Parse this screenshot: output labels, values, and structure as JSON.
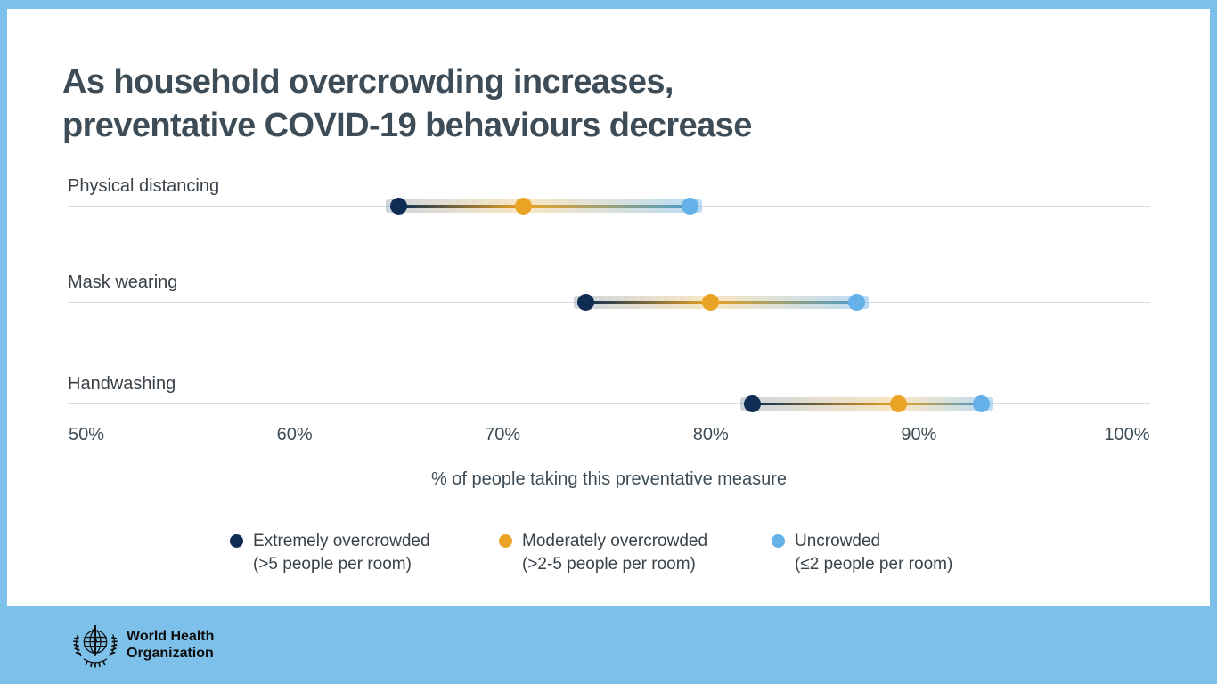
{
  "title": {
    "line1": "As household overcrowding increases,",
    "line2": "preventative COVID-19 behaviours decrease"
  },
  "chart_data": {
    "type": "dumbbell",
    "categories": [
      "Physical distancing",
      "Mask wearing",
      "Handwashing"
    ],
    "series": [
      {
        "name": "Extremely overcrowded (>5 people per room)",
        "color": "#0f2d52",
        "values": [
          65,
          74,
          82
        ]
      },
      {
        "name": "Moderately overcrowded (>2-5 people per room)",
        "color": "#e9a425",
        "values": [
          71,
          80,
          89
        ]
      },
      {
        "name": "Uncrowded (≤2 people per room)",
        "color": "#64b0e8",
        "values": [
          79,
          87,
          93
        ]
      }
    ],
    "xlim": [
      50,
      100
    ],
    "x_ticks": [
      "50%",
      "60%",
      "70%",
      "80%",
      "90%",
      "100%"
    ],
    "xlabel": "% of people taking this preventative measure",
    "grid": "one horizontal line per category row",
    "legend_position": "bottom"
  },
  "legend": {
    "items": [
      {
        "label": "Extremely overcrowded",
        "sublabel": "(>5 people per room)",
        "color": "#0f2d52"
      },
      {
        "label": "Moderately overcrowded",
        "sublabel": "(>2-5 people per room)",
        "color": "#e9a425"
      },
      {
        "label": "Uncrowded",
        "sublabel": "(≤2 people per room)",
        "color": "#64b0e8"
      }
    ]
  },
  "footer": {
    "org_line1": "World Health",
    "org_line2": "Organization"
  },
  "colors": {
    "frame": "#7dc0ea",
    "card": "#ffffff",
    "title_text": "#3d4c56",
    "label_text": "#3a4249",
    "gridline": "#d9dde0",
    "navy": "#0f2d52",
    "amber": "#e9a425",
    "light_blue": "#64b0e8",
    "link_line_end": "#4f9cc9"
  }
}
